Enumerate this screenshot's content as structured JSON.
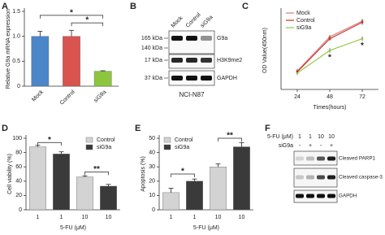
{
  "chart_data": [
    {
      "panel": "A",
      "type": "bar",
      "ylabel": "Relative G9a mRNA expression",
      "categories": [
        "Mock",
        "Control",
        "siG9a"
      ],
      "values": [
        1.0,
        1.0,
        0.3
      ],
      "errors": [
        0.1,
        0.12,
        0.01
      ],
      "colors": [
        "#4a86c8",
        "#d9534f",
        "#8cc63e"
      ],
      "ylim": [
        0,
        1.5
      ],
      "yticks": [
        0,
        0.5,
        {
          "value": 1,
          "label": "1.0"
        },
        1.5
      ],
      "annotations": [
        "*",
        "*"
      ]
    },
    {
      "panel": "C",
      "type": "line",
      "ylabel": "OD Value(450nm)",
      "xlabel": "Times(hours)",
      "x": [
        24,
        48,
        72
      ],
      "xlim": [
        12,
        84
      ],
      "xticks": [
        24,
        48,
        72
      ],
      "ylim": [
        0,
        2
      ],
      "series": [
        {
          "name": "Mock",
          "color": "#c9807a",
          "values": [
            0.47,
            1.35,
            1.75
          ],
          "errors": [
            0.06,
            0.05,
            0.06
          ]
        },
        {
          "name": "Control",
          "color": "#d62728",
          "values": [
            0.45,
            1.3,
            1.72
          ],
          "errors": [
            0.05,
            0.05,
            0.07
          ]
        },
        {
          "name": "siG9a",
          "color": "#8cc63e",
          "values": [
            0.42,
            1.0,
            1.3
          ],
          "errors": [
            0.05,
            0.06,
            0.06
          ]
        }
      ],
      "legend": "top-left",
      "annotations": [
        "*",
        "*"
      ]
    },
    {
      "panel": "D",
      "type": "bar",
      "ylabel": "Cell viability (%)",
      "xlabel": "5-FU (μM)",
      "categories": [
        "1",
        "1",
        "10",
        "10"
      ],
      "series": [
        {
          "name": "Control",
          "color": "#d3d3d3",
          "values": [
            88,
            null,
            46,
            null
          ],
          "errors": [
            2,
            null,
            1.5,
            null
          ]
        },
        {
          "name": "siG9a",
          "color": "#3a3a3a",
          "values": [
            null,
            78,
            null,
            33
          ],
          "errors": [
            null,
            3,
            null,
            2.5
          ]
        }
      ],
      "ylim": [
        0,
        100
      ],
      "yticks": [
        0,
        20,
        40,
        60,
        80,
        100
      ],
      "legend": "top-right",
      "annotations": [
        "*",
        "**"
      ]
    },
    {
      "panel": "E",
      "type": "bar",
      "ylabel": "Apoptosis (%)",
      "xlabel": "5-FU (μM)",
      "categories": [
        "1",
        "1",
        "10",
        "10"
      ],
      "series": [
        {
          "name": "Control",
          "color": "#d3d3d3",
          "values": [
            12,
            null,
            30,
            null
          ],
          "errors": [
            3,
            null,
            2,
            null
          ]
        },
        {
          "name": "siG9a",
          "color": "#3a3a3a",
          "values": [
            null,
            20,
            null,
            44
          ],
          "errors": [
            null,
            1.5,
            null,
            3
          ]
        }
      ],
      "ylim": [
        0,
        50
      ],
      "yticks": [
        0,
        10,
        20,
        30,
        40,
        50
      ],
      "legend": "top-left",
      "annotations": [
        "*",
        "**"
      ]
    }
  ],
  "blots": [
    {
      "panel": "B",
      "lanes": [
        "Mock",
        "Control",
        "siG9a"
      ],
      "markers": [
        "165 kDa",
        "140 kDa",
        "17 kDa",
        "37 kDa"
      ],
      "proteins": [
        "G9a",
        "H3K9me2",
        "GAPDH"
      ],
      "caption": "NCI-N87"
    },
    {
      "panel": "F",
      "rows": [
        {
          "label": "5-FU (μM)",
          "values": [
            "1",
            "1",
            "10",
            "10"
          ]
        },
        {
          "label": "siG9a",
          "values": [
            "-",
            "+",
            "-",
            "+"
          ]
        }
      ],
      "proteins": [
        "Cleaved PARP1",
        "Cleaved caspase-3",
        "GAPDH"
      ]
    }
  ]
}
